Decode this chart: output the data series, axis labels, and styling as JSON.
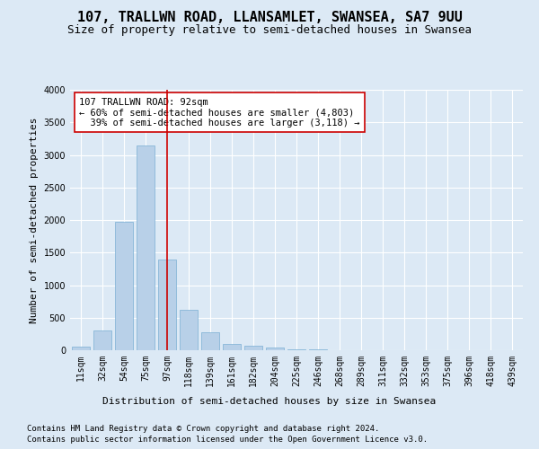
{
  "title": "107, TRALLWN ROAD, LLANSAMLET, SWANSEA, SA7 9UU",
  "subtitle": "Size of property relative to semi-detached houses in Swansea",
  "xlabel": "Distribution of semi-detached houses by size in Swansea",
  "ylabel": "Number of semi-detached properties",
  "footer_line1": "Contains HM Land Registry data © Crown copyright and database right 2024.",
  "footer_line2": "Contains public sector information licensed under the Open Government Licence v3.0.",
  "categories": [
    "11sqm",
    "32sqm",
    "54sqm",
    "75sqm",
    "97sqm",
    "118sqm",
    "139sqm",
    "161sqm",
    "182sqm",
    "204sqm",
    "225sqm",
    "246sqm",
    "268sqm",
    "289sqm",
    "311sqm",
    "332sqm",
    "353sqm",
    "375sqm",
    "396sqm",
    "418sqm",
    "439sqm"
  ],
  "values": [
    50,
    300,
    1975,
    3150,
    1390,
    625,
    270,
    100,
    70,
    45,
    20,
    10,
    5,
    3,
    2,
    2,
    1,
    1,
    1,
    0,
    0
  ],
  "bar_color": "#b8d0e8",
  "bar_edgecolor": "#7aafd4",
  "marker_color": "#cc0000",
  "annotation_text": "107 TRALLWN ROAD: 92sqm\n← 60% of semi-detached houses are smaller (4,803)\n  39% of semi-detached houses are larger (3,118) →",
  "annotation_box_color": "#ffffff",
  "annotation_box_edgecolor": "#cc0000",
  "ylim": [
    0,
    4000
  ],
  "yticks": [
    0,
    500,
    1000,
    1500,
    2000,
    2500,
    3000,
    3500,
    4000
  ],
  "background_color": "#dce9f5",
  "plot_background_color": "#dce9f5",
  "title_fontsize": 11,
  "subtitle_fontsize": 9,
  "axis_label_fontsize": 8,
  "tick_fontsize": 7,
  "annotation_fontsize": 7.5,
  "footer_fontsize": 6.5
}
